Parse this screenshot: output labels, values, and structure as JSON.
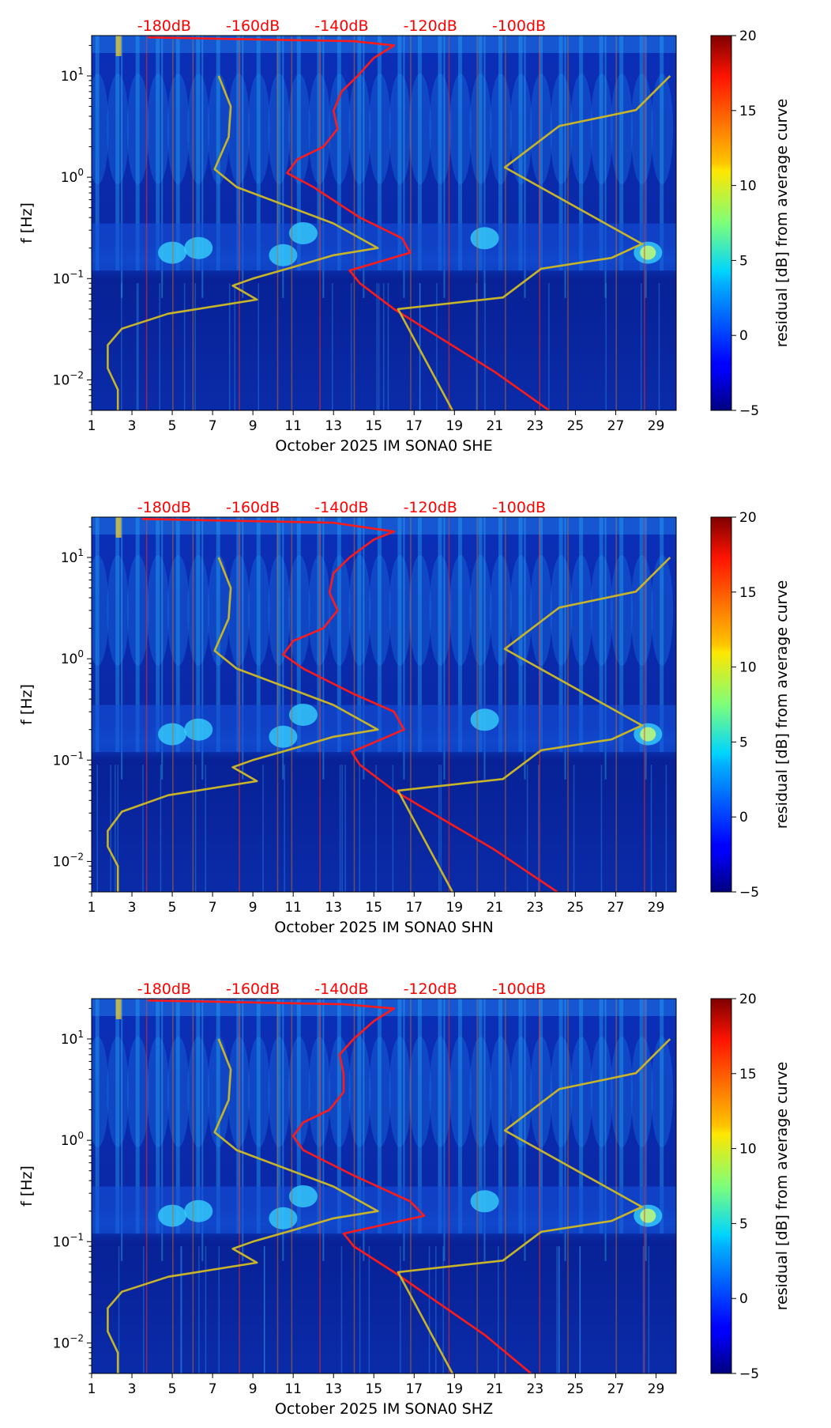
{
  "colors": {
    "red_curve": "#ff1a1a",
    "yellow_curve": "#c8b428",
    "top_label": "#ff0000",
    "background_field": "#0a2aa8"
  },
  "chart_data": [
    {
      "type": "heatmap",
      "xlabel": "October 2025 IM SONA0  SHE",
      "ylabel": "f [Hz]",
      "x_ticks": [
        1,
        3,
        5,
        7,
        9,
        11,
        13,
        15,
        17,
        19,
        21,
        23,
        25,
        27,
        29
      ],
      "xlim": [
        1,
        30
      ],
      "ylim": [
        0.005,
        25
      ],
      "yscale": "log",
      "y_tick_labels": [
        "10^1",
        "10^0",
        "10^-1",
        "10^-2"
      ],
      "top_axis_labels": [
        "-180dB",
        "-160dB",
        "-140dB",
        "-120dB",
        "-100dB"
      ],
      "colorbar": {
        "label": "residual [dB] from average curve",
        "range": [
          -5,
          20
        ],
        "ticks": [
          20,
          15,
          10,
          5,
          0,
          -5
        ],
        "colormap": "jet"
      },
      "series": [
        {
          "name": "red curve",
          "color": "red",
          "points": [
            [
              23.7,
              0.005
            ],
            [
              21.0,
              0.012
            ],
            [
              16.0,
              0.05
            ],
            [
              14.3,
              0.09
            ],
            [
              13.8,
              0.12
            ],
            [
              16.8,
              0.18
            ],
            [
              16.4,
              0.25
            ],
            [
              14.3,
              0.4
            ],
            [
              12.0,
              0.8
            ],
            [
              10.7,
              1.1
            ],
            [
              11.2,
              1.5
            ],
            [
              12.5,
              2
            ],
            [
              13.2,
              3
            ],
            [
              13.0,
              4.5
            ],
            [
              13.4,
              7
            ],
            [
              14.2,
              10
            ],
            [
              15.0,
              15
            ],
            [
              16.0,
              20
            ],
            [
              14.0,
              22
            ],
            [
              3.8,
              24
            ]
          ]
        },
        {
          "name": "yellow curve lower branch",
          "color": "yellow",
          "points": [
            [
              2.3,
              0.005
            ],
            [
              2.3,
              0.008
            ],
            [
              1.8,
              0.013
            ],
            [
              1.8,
              0.022
            ],
            [
              2.5,
              0.032
            ],
            [
              4.8,
              0.045
            ],
            [
              9.2,
              0.062
            ],
            [
              8.0,
              0.085
            ],
            [
              9.0,
              0.1
            ],
            [
              11.0,
              0.13
            ],
            [
              13.0,
              0.17
            ],
            [
              15.2,
              0.2
            ],
            [
              13.0,
              0.35
            ],
            [
              8.2,
              0.8
            ],
            [
              7.1,
              1.2
            ],
            [
              7.8,
              2.5
            ],
            [
              7.9,
              5
            ],
            [
              7.3,
              10
            ]
          ]
        },
        {
          "name": "yellow curve upper branch",
          "color": "yellow",
          "points": [
            [
              18.9,
              0.005
            ],
            [
              16.2,
              0.05
            ],
            [
              21.4,
              0.065
            ],
            [
              23.3,
              0.125
            ],
            [
              26.8,
              0.16
            ],
            [
              28.3,
              0.22
            ],
            [
              21.5,
              1.25
            ],
            [
              24.2,
              3.2
            ],
            [
              28.0,
              4.6
            ],
            [
              29.7,
              10
            ]
          ]
        }
      ]
    },
    {
      "type": "heatmap",
      "xlabel": "October 2025 IM SONA0  SHN",
      "ylabel": "f [Hz]",
      "x_ticks": [
        1,
        3,
        5,
        7,
        9,
        11,
        13,
        15,
        17,
        19,
        21,
        23,
        25,
        27,
        29
      ],
      "xlim": [
        1,
        30
      ],
      "ylim": [
        0.005,
        25
      ],
      "yscale": "log",
      "y_tick_labels": [
        "10^1",
        "10^0",
        "10^-1",
        "10^-2"
      ],
      "top_axis_labels": [
        "-180dB",
        "-160dB",
        "-140dB",
        "-120dB",
        "-100dB"
      ],
      "colorbar": {
        "label": "residual [dB] from average curve",
        "range": [
          -5,
          20
        ],
        "ticks": [
          20,
          15,
          10,
          5,
          0,
          -5
        ],
        "colormap": "jet"
      },
      "series": [
        {
          "name": "red curve",
          "color": "red",
          "points": [
            [
              24.1,
              0.005
            ],
            [
              21.0,
              0.013
            ],
            [
              16.0,
              0.05
            ],
            [
              14.3,
              0.09
            ],
            [
              13.9,
              0.12
            ],
            [
              16.5,
              0.2
            ],
            [
              16.0,
              0.3
            ],
            [
              14.0,
              0.45
            ],
            [
              11.5,
              0.8
            ],
            [
              10.5,
              1.1
            ],
            [
              11.0,
              1.5
            ],
            [
              12.5,
              2
            ],
            [
              13.2,
              3
            ],
            [
              12.8,
              4.5
            ],
            [
              13.0,
              7
            ],
            [
              13.8,
              10
            ],
            [
              15.0,
              15
            ],
            [
              16.0,
              18
            ],
            [
              13.0,
              22
            ],
            [
              3.5,
              24
            ]
          ]
        },
        {
          "name": "yellow curve lower branch",
          "color": "yellow",
          "points": [
            [
              2.3,
              0.005
            ],
            [
              2.3,
              0.009
            ],
            [
              1.8,
              0.014
            ],
            [
              1.8,
              0.02
            ],
            [
              2.5,
              0.031
            ],
            [
              4.8,
              0.045
            ],
            [
              9.2,
              0.062
            ],
            [
              8.0,
              0.085
            ],
            [
              9.0,
              0.1
            ],
            [
              11.0,
              0.13
            ],
            [
              13.0,
              0.17
            ],
            [
              15.2,
              0.2
            ],
            [
              13.0,
              0.35
            ],
            [
              8.2,
              0.8
            ],
            [
              7.1,
              1.2
            ],
            [
              7.8,
              2.5
            ],
            [
              7.9,
              5
            ],
            [
              7.3,
              10
            ]
          ]
        },
        {
          "name": "yellow curve upper branch",
          "color": "yellow",
          "points": [
            [
              18.9,
              0.005
            ],
            [
              16.2,
              0.05
            ],
            [
              21.4,
              0.065
            ],
            [
              23.3,
              0.125
            ],
            [
              26.8,
              0.16
            ],
            [
              28.3,
              0.22
            ],
            [
              21.5,
              1.25
            ],
            [
              24.2,
              3.2
            ],
            [
              28.0,
              4.6
            ],
            [
              29.7,
              10
            ]
          ]
        }
      ]
    },
    {
      "type": "heatmap",
      "xlabel": "October 2025 IM SONA0  SHZ",
      "ylabel": "f [Hz]",
      "x_ticks": [
        1,
        3,
        5,
        7,
        9,
        11,
        13,
        15,
        17,
        19,
        21,
        23,
        25,
        27,
        29
      ],
      "xlim": [
        1,
        30
      ],
      "ylim": [
        0.005,
        25
      ],
      "yscale": "log",
      "y_tick_labels": [
        "10^1",
        "10^0",
        "10^-1",
        "10^-2"
      ],
      "top_axis_labels": [
        "-180dB",
        "-160dB",
        "-140dB",
        "-120dB",
        "-100dB"
      ],
      "colorbar": {
        "label": "residual [dB] from average curve",
        "range": [
          -5,
          20
        ],
        "ticks": [
          20,
          15,
          10,
          5,
          0,
          -5
        ],
        "colormap": "jet"
      },
      "series": [
        {
          "name": "red curve",
          "color": "red",
          "points": [
            [
              22.8,
              0.005
            ],
            [
              20.5,
              0.012
            ],
            [
              16.0,
              0.05
            ],
            [
              14.0,
              0.09
            ],
            [
              13.5,
              0.12
            ],
            [
              17.5,
              0.18
            ],
            [
              16.8,
              0.25
            ],
            [
              14.0,
              0.45
            ],
            [
              11.5,
              0.8
            ],
            [
              11.0,
              1.1
            ],
            [
              11.5,
              1.5
            ],
            [
              12.8,
              2
            ],
            [
              13.5,
              3
            ],
            [
              13.5,
              4.5
            ],
            [
              13.3,
              7
            ],
            [
              14.0,
              10
            ],
            [
              15.0,
              15
            ],
            [
              16.0,
              20
            ],
            [
              13.5,
              22
            ],
            [
              3.8,
              24
            ]
          ]
        },
        {
          "name": "yellow curve lower branch",
          "color": "yellow",
          "points": [
            [
              2.3,
              0.005
            ],
            [
              2.3,
              0.008
            ],
            [
              1.8,
              0.013
            ],
            [
              1.8,
              0.022
            ],
            [
              2.5,
              0.032
            ],
            [
              4.8,
              0.045
            ],
            [
              9.2,
              0.062
            ],
            [
              8.0,
              0.085
            ],
            [
              9.0,
              0.1
            ],
            [
              11.0,
              0.13
            ],
            [
              13.0,
              0.17
            ],
            [
              15.2,
              0.2
            ],
            [
              13.0,
              0.35
            ],
            [
              8.2,
              0.8
            ],
            [
              7.1,
              1.2
            ],
            [
              7.8,
              2.5
            ],
            [
              7.9,
              5
            ],
            [
              7.3,
              10
            ]
          ]
        },
        {
          "name": "yellow curve upper branch",
          "color": "yellow",
          "points": [
            [
              18.9,
              0.005
            ],
            [
              16.2,
              0.05
            ],
            [
              21.4,
              0.065
            ],
            [
              23.3,
              0.125
            ],
            [
              26.8,
              0.16
            ],
            [
              28.3,
              0.22
            ],
            [
              21.5,
              1.25
            ],
            [
              24.2,
              3.2
            ],
            [
              28.0,
              4.6
            ],
            [
              29.7,
              10
            ]
          ]
        }
      ]
    }
  ]
}
